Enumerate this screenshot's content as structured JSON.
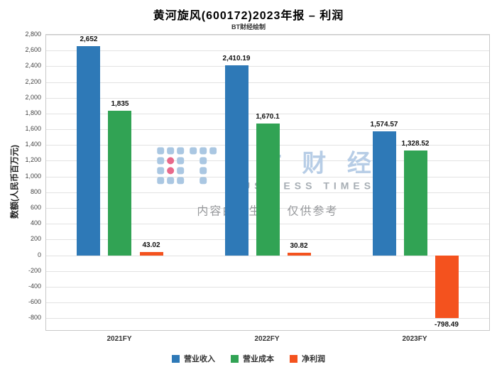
{
  "title": "黄河旋风(600172)2023年报 – 利润",
  "subtitle": "BT财经绘制",
  "watermark": {
    "logo": "bt-dots-logo",
    "brand": "B T 财 经",
    "brand_sub": "BUSINESS TIMES",
    "note": "内容由AI生成，仅供参考",
    "brand_color": "#b7cde6",
    "logo_dot_color": "#aac7e2",
    "logo_accent_color": "#e8698b"
  },
  "chart_data": {
    "type": "bar",
    "categories": [
      "2021FY",
      "2022FY",
      "2023FY"
    ],
    "series": [
      {
        "name": "营业收入",
        "color": "#2e79b7",
        "values": [
          2652,
          2410.19,
          1574.57
        ],
        "labels": [
          "2,652",
          "2,410.19",
          "1,574.57"
        ]
      },
      {
        "name": "营业成本",
        "color": "#31a354",
        "values": [
          1835,
          1670.1,
          1328.52
        ],
        "labels": [
          "1,835",
          "1,670.1",
          "1,328.52"
        ]
      },
      {
        "name": "净利润",
        "color": "#f4521e",
        "values": [
          43.02,
          30.82,
          -798.49
        ],
        "labels": [
          "43.02",
          "30.82",
          "-798.49"
        ]
      }
    ],
    "xlabel": "",
    "ylabel": "数额(人民币百万元)",
    "ylim": [
      -950,
      2800
    ],
    "yticks": {
      "values": [
        2800,
        2600,
        2400,
        2200,
        2000,
        1800,
        1600,
        1400,
        1200,
        1000,
        800,
        600,
        400,
        200,
        0,
        -200,
        -400,
        -600,
        -800
      ],
      "labels": [
        "2,800",
        "2,600",
        "2,400",
        "2,200",
        "2,000",
        "1,800",
        "1,600",
        "1,400",
        "1,200",
        "1,000",
        "800",
        "600",
        "400",
        "200",
        "0",
        "-200",
        "-400",
        "-600",
        "-800"
      ]
    },
    "grid": true,
    "legend_position": "bottom"
  }
}
